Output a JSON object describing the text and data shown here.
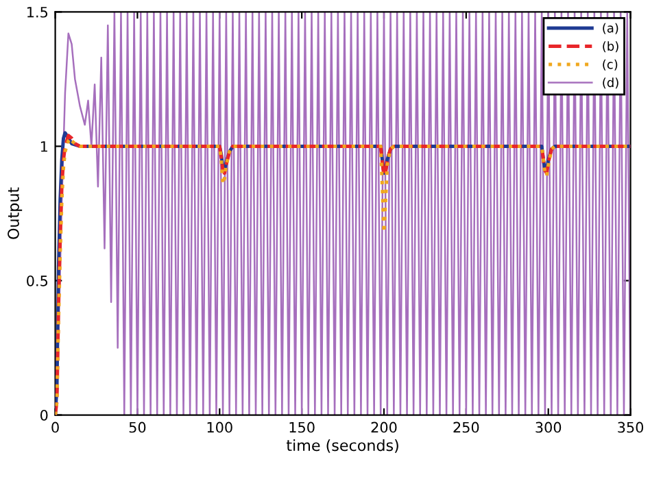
{
  "chart_data": {
    "type": "line",
    "xlabel": "time (seconds)",
    "ylabel": "Output",
    "xlim": [
      0,
      350
    ],
    "ylim": [
      0,
      1.5
    ],
    "xticks": [
      0,
      50,
      100,
      150,
      200,
      250,
      300,
      350
    ],
    "yticks": [
      0,
      0.5,
      1,
      1.5
    ],
    "grid": false,
    "legend": "top right",
    "marker": "none",
    "series": [
      {
        "name": "(d)",
        "color": "#a66fbd",
        "line_style": "solid",
        "x": [
          0,
          2,
          4,
          6,
          8,
          10,
          12,
          15,
          18,
          20,
          22,
          24,
          26,
          28,
          30,
          32,
          34,
          36,
          38,
          40,
          42,
          44,
          46,
          48,
          50,
          52,
          54,
          56,
          58,
          60,
          62,
          64,
          66,
          68,
          70,
          72,
          74,
          76,
          78,
          80,
          82,
          84,
          86,
          88,
          90,
          92,
          94,
          96,
          98,
          100,
          102,
          104,
          106,
          108,
          110,
          112,
          114,
          116,
          118,
          120,
          122,
          124,
          126,
          128,
          130,
          132,
          134,
          136,
          138,
          140,
          142,
          144,
          146,
          148,
          150,
          152,
          154,
          156,
          158,
          160,
          162,
          164,
          166,
          168,
          170,
          172,
          174,
          176,
          178,
          180,
          182,
          184,
          186,
          188,
          190,
          192,
          194,
          196,
          198,
          200,
          202,
          204,
          206,
          208,
          210,
          212,
          214,
          216,
          218,
          220,
          222,
          224,
          226,
          228,
          230,
          232,
          234,
          236,
          238,
          240,
          242,
          244,
          246,
          248,
          250,
          252,
          254,
          256,
          258,
          260,
          262,
          264,
          266,
          268,
          270,
          272,
          274,
          276,
          278,
          280,
          282,
          284,
          286,
          288,
          290,
          292,
          294,
          296,
          298,
          300,
          302,
          304,
          306,
          308,
          310,
          312,
          314,
          316,
          318,
          320,
          322,
          324,
          326,
          328,
          330,
          332,
          334,
          336,
          338,
          340,
          342,
          344,
          346,
          348,
          350
        ],
        "values": [
          0,
          0.3,
          0.8,
          1.2,
          1.42,
          1.38,
          1.25,
          1.15,
          1.08,
          1.17,
          1.0,
          1.23,
          0.85,
          1.33,
          0.62,
          1.45,
          0.42,
          1.5,
          0.25,
          1.5,
          0,
          1.5,
          0,
          1.5,
          0,
          1.5,
          0,
          1.5,
          0,
          1.5,
          0,
          1.5,
          0,
          1.5,
          0,
          1.5,
          0,
          1.5,
          0,
          1.5,
          0,
          1.5,
          0,
          1.5,
          0,
          1.5,
          0,
          1.5,
          0,
          1.5,
          0,
          1.5,
          0,
          1.5,
          0,
          1.5,
          0,
          1.5,
          0,
          1.5,
          0,
          1.5,
          0,
          1.5,
          0,
          1.5,
          0,
          1.5,
          0,
          1.5,
          0,
          1.5,
          0,
          1.5,
          0,
          1.5,
          0,
          1.5,
          0,
          1.5,
          0,
          1.5,
          0,
          1.5,
          0,
          1.5,
          0,
          1.5,
          0,
          1.5,
          0,
          1.5,
          0,
          1.5,
          0,
          1.5,
          0,
          1.5,
          0,
          1.5,
          0,
          1.5,
          0,
          1.5,
          0,
          1.5,
          0,
          1.5,
          0,
          1.5,
          0,
          1.5,
          0,
          1.5,
          0,
          1.5,
          0,
          1.5,
          0,
          1.5,
          0,
          1.5,
          0,
          1.5,
          0,
          1.5,
          0,
          1.5,
          0,
          1.5,
          0,
          1.5,
          0,
          1.5,
          0,
          1.5,
          0,
          1.5,
          0,
          1.5,
          0,
          1.5,
          0,
          1.5,
          0,
          1.5,
          0,
          1.5,
          0,
          1.5,
          0,
          1.5,
          0,
          1.5,
          0,
          1.5,
          0,
          1.5,
          0,
          1.5,
          0,
          1.5,
          0,
          1.5,
          0,
          1.5,
          0,
          1.5,
          0,
          1.5,
          0,
          1.5,
          0,
          1.5,
          0
        ]
      },
      {
        "name": "(a)",
        "color": "#1f3a93",
        "line_style": "solid",
        "x": [
          0,
          1,
          2,
          3,
          4,
          5,
          6,
          8,
          10,
          15,
          100,
          101,
          102,
          103,
          104,
          106,
          108,
          110,
          198,
          199,
          200,
          201,
          202,
          204,
          206,
          208,
          296,
          297,
          298,
          299,
          300,
          302,
          304,
          306,
          350
        ],
        "values": [
          0,
          0.1,
          0.55,
          0.8,
          0.95,
          1.03,
          1.05,
          1.03,
          1.01,
          1.0,
          1.0,
          0.97,
          0.92,
          0.91,
          0.94,
          0.98,
          1.0,
          1.0,
          1.0,
          0.95,
          0.9,
          0.91,
          0.95,
          0.99,
          1.0,
          1.0,
          1.0,
          0.95,
          0.91,
          0.91,
          0.95,
          0.99,
          1.0,
          1.0,
          1.0
        ]
      },
      {
        "name": "(b)",
        "color": "#e8262a",
        "line_style": "dashed",
        "x": [
          0,
          1,
          2,
          3,
          4,
          5,
          6,
          8,
          10,
          12,
          15,
          100,
          101,
          102,
          103,
          104,
          106,
          108,
          110,
          198,
          199,
          200,
          201,
          202,
          204,
          206,
          208,
          296,
          297,
          298,
          299,
          300,
          302,
          304,
          306,
          350
        ],
        "values": [
          0,
          0.05,
          0.4,
          0.65,
          0.85,
          0.95,
          1.0,
          1.04,
          1.03,
          1.01,
          1.0,
          1.0,
          0.96,
          0.91,
          0.9,
          0.93,
          0.98,
          1.0,
          1.0,
          1.0,
          0.94,
          0.89,
          0.9,
          0.95,
          0.99,
          1.0,
          1.0,
          1.0,
          0.95,
          0.91,
          0.9,
          0.94,
          0.99,
          1.0,
          1.0,
          1.0
        ]
      },
      {
        "name": "(c)",
        "color": "#f0a81e",
        "line_style": "dotted",
        "x": [
          0,
          1,
          2,
          3,
          4,
          5,
          6,
          8,
          9,
          10,
          12,
          15,
          100,
          101,
          102,
          103,
          104,
          106,
          108,
          110,
          198,
          199,
          200,
          201,
          202,
          204,
          206,
          208,
          296,
          297,
          298,
          299,
          300,
          302,
          304,
          306,
          350
        ],
        "values": [
          0,
          0.05,
          0.35,
          0.6,
          0.8,
          0.92,
          0.98,
          1.02,
          1.03,
          1.02,
          1.01,
          1.0,
          1.0,
          0.95,
          0.86,
          0.88,
          0.93,
          0.98,
          1.0,
          1.0,
          1.0,
          0.85,
          0.68,
          0.8,
          0.93,
          0.99,
          1.0,
          1.0,
          1.0,
          0.95,
          0.9,
          0.89,
          0.93,
          0.99,
          1.0,
          1.0,
          1.0
        ]
      }
    ]
  }
}
